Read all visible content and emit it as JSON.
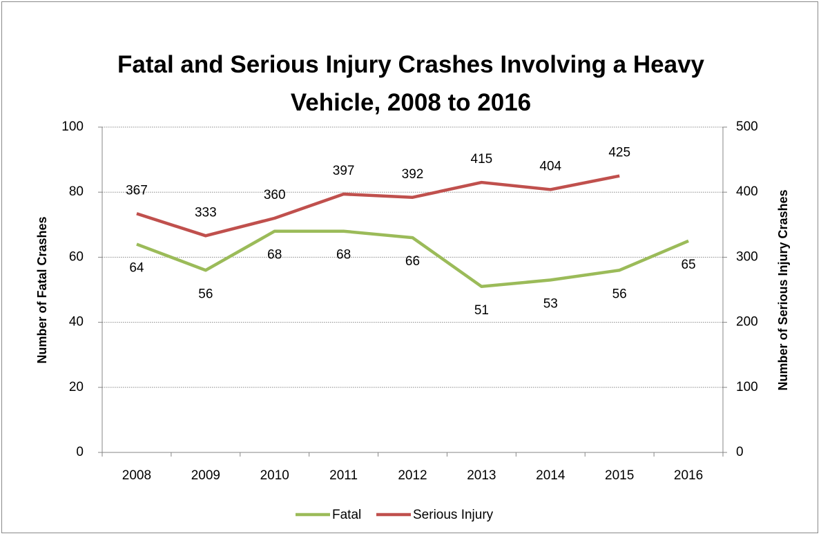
{
  "chart_data": {
    "type": "line",
    "title": "Fatal and Serious Injury Crashes Involving a Heavy Vehicle, 2008 to 2016",
    "y_label": "Number of Fatal Crashes",
    "y2_label": "Number of Serious Injury Crashes",
    "categories": [
      "2008",
      "2009",
      "2010",
      "2011",
      "2012",
      "2013",
      "2014",
      "2015",
      "2016"
    ],
    "series": [
      {
        "name": "Fatal",
        "color": "#9bbb59",
        "values": [
          64,
          56,
          68,
          68,
          66,
          51,
          53,
          56,
          65
        ]
      },
      {
        "name": "Serious Injury",
        "color": "#c0504d",
        "axis": "y2",
        "values": [
          367,
          333,
          360,
          397,
          392,
          415,
          404,
          425,
          null
        ]
      }
    ],
    "ylim": [
      0,
      100
    ],
    "yticks": [
      0,
      20,
      40,
      60,
      80,
      100
    ],
    "y2lim": [
      0,
      500
    ],
    "y2ticks": [
      0,
      100,
      200,
      300,
      400,
      500
    ],
    "grid": true,
    "legend": "bottom"
  }
}
